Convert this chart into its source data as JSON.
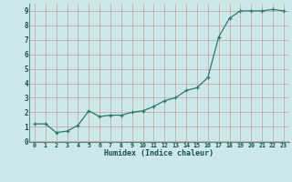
{
  "x": [
    0,
    1,
    2,
    3,
    4,
    5,
    6,
    7,
    8,
    9,
    10,
    11,
    12,
    13,
    14,
    15,
    16,
    17,
    18,
    19,
    20,
    21,
    22,
    23
  ],
  "y": [
    1.2,
    1.2,
    0.6,
    0.7,
    1.1,
    2.1,
    1.7,
    1.8,
    1.8,
    2.0,
    2.1,
    2.4,
    2.8,
    3.0,
    3.5,
    3.7,
    4.4,
    7.2,
    8.5,
    9.0,
    9.0,
    9.0,
    9.1,
    9.0
  ],
  "xlabel": "Humidex (Indice chaleur)",
  "xlim": [
    -0.5,
    23.5
  ],
  "ylim": [
    -0.05,
    9.5
  ],
  "line_color": "#2d7b6e",
  "marker": "+",
  "bg_color": "#cce8e8",
  "grid_color": "#c8a0a0",
  "tick_label_color": "#1a5050",
  "xlabel_color": "#1a5050",
  "yticks": [
    0,
    1,
    2,
    3,
    4,
    5,
    6,
    7,
    8,
    9
  ],
  "xticks": [
    0,
    1,
    2,
    3,
    4,
    5,
    6,
    7,
    8,
    9,
    10,
    11,
    12,
    13,
    14,
    15,
    16,
    17,
    18,
    19,
    20,
    21,
    22,
    23
  ]
}
